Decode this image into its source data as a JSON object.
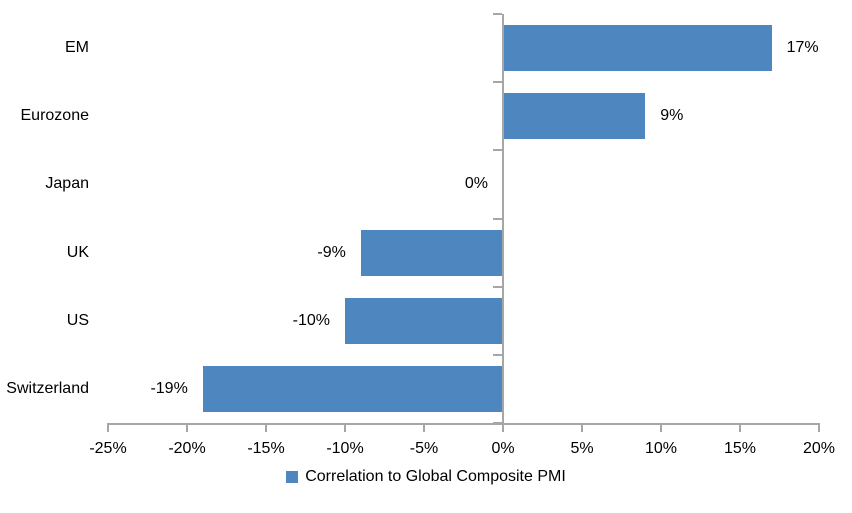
{
  "chart_data": {
    "type": "bar",
    "orientation": "horizontal",
    "title": "",
    "categories": [
      "EM",
      "Eurozone",
      "Japan",
      "UK",
      "US",
      "Switzerland"
    ],
    "values": [
      17,
      9,
      0,
      -9,
      -10,
      -19
    ],
    "value_labels": [
      "17%",
      "9%",
      "0%",
      "-9%",
      "-10%",
      "-19%"
    ],
    "series": [
      {
        "name": "Correlation to Global Composite PMI",
        "values": [
          17,
          9,
          0,
          -9,
          -10,
          -19
        ]
      }
    ],
    "xlim": [
      -25,
      20
    ],
    "x_ticks": [
      -25,
      -20,
      -15,
      -10,
      -5,
      0,
      5,
      10,
      15,
      20
    ],
    "x_tick_labels": [
      "-25%",
      "-20%",
      "-15%",
      "-10%",
      "-5%",
      "0%",
      "5%",
      "10%",
      "15%",
      "20%"
    ],
    "grid": false,
    "legend": {
      "position": "bottom",
      "label": "Correlation to Global Composite PMI"
    },
    "colors": {
      "bar": "#4E86C0",
      "axis": "#A6A6A6",
      "text": "#000000",
      "background": "#FFFFFF"
    }
  }
}
